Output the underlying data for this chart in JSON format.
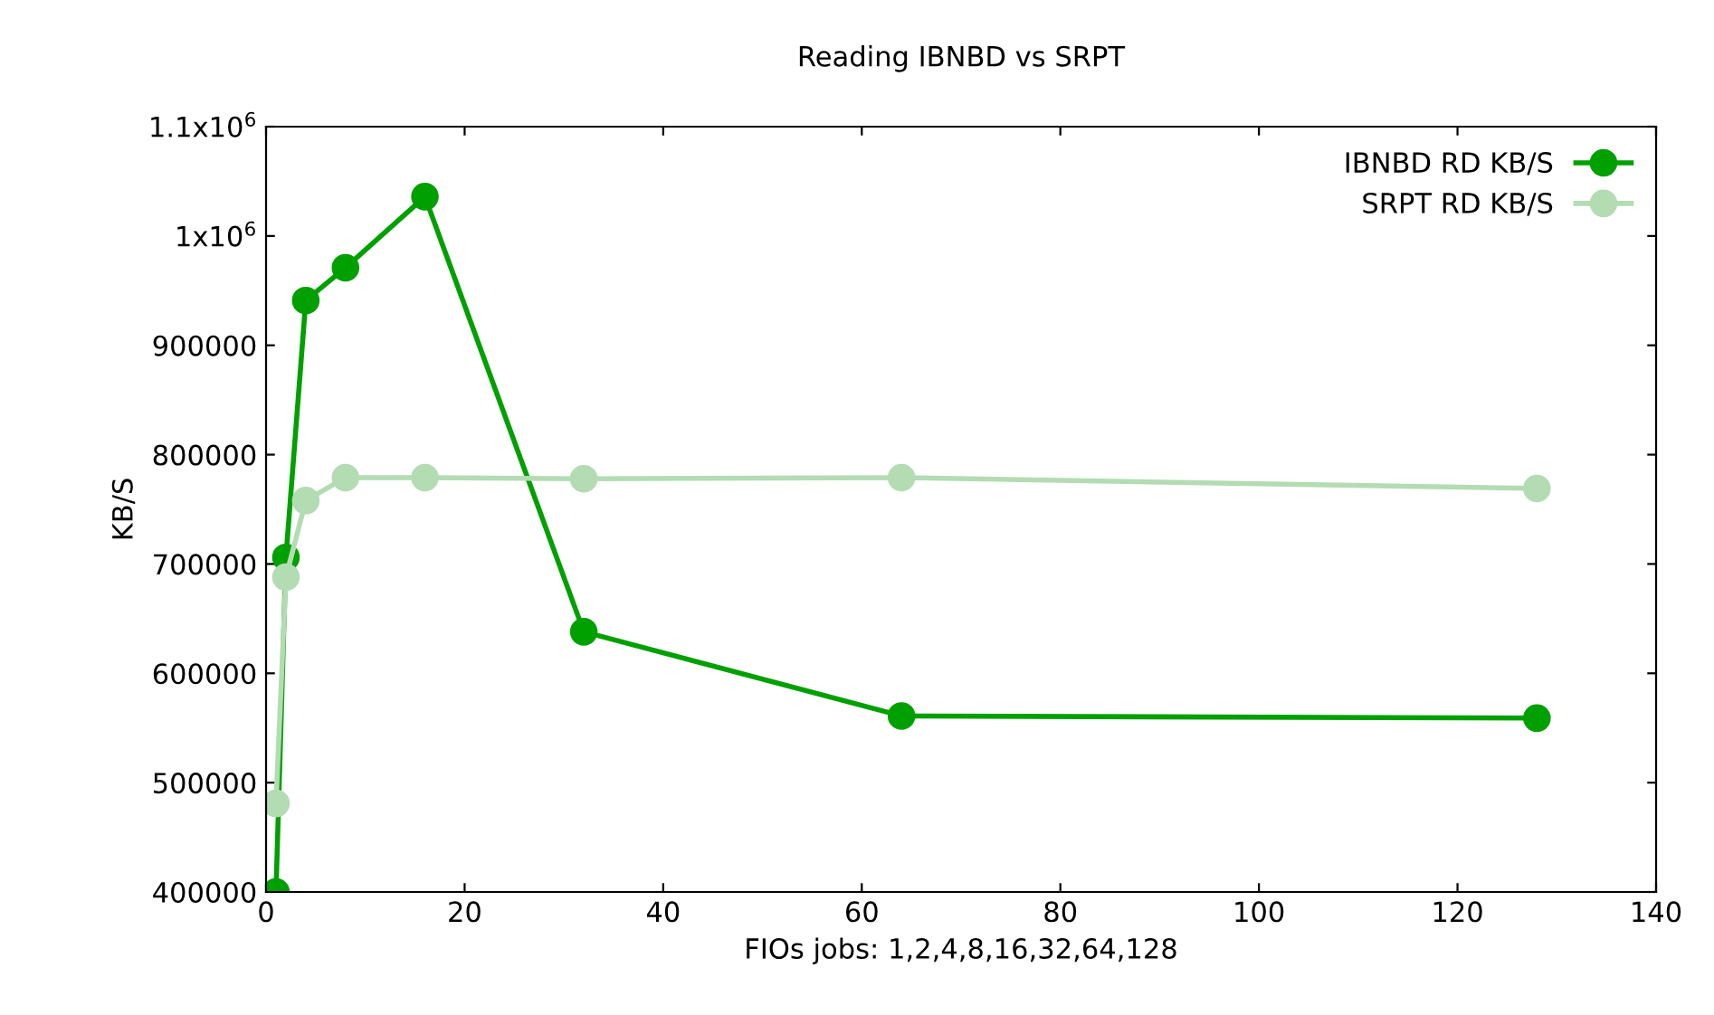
{
  "chart_data": {
    "type": "line",
    "title": "Reading IBNBD vs SRPT",
    "xlabel": "FIOs jobs: 1,2,4,8,16,32,64,128",
    "ylabel": "KB/S",
    "x": [
      1,
      2,
      4,
      8,
      16,
      32,
      64,
      128
    ],
    "series": [
      {
        "name": "IBNBD RD KB/S",
        "color": "#00a000",
        "values": [
          400000,
          706000,
          941000,
          971000,
          1036000,
          638000,
          561000,
          559000
        ]
      },
      {
        "name": "SRPT RD KB/S",
        "color": "#b3dcb3",
        "values": [
          481000,
          688000,
          758000,
          779000,
          779000,
          778000,
          779000,
          769000
        ]
      }
    ],
    "xlim": [
      0,
      140
    ],
    "xticks": [
      0,
      20,
      40,
      60,
      80,
      100,
      120,
      140
    ],
    "ylim": [
      400000,
      1100000
    ],
    "yticks": [
      400000,
      500000,
      600000,
      700000,
      800000,
      900000,
      {
        "value": 1000000,
        "label": "1x10$^{6}$"
      },
      {
        "value": 1100000,
        "label": "1.1x10$^{6}$"
      }
    ],
    "marker": "circle",
    "line_style": "solid",
    "legend": "top right",
    "grid": false
  }
}
